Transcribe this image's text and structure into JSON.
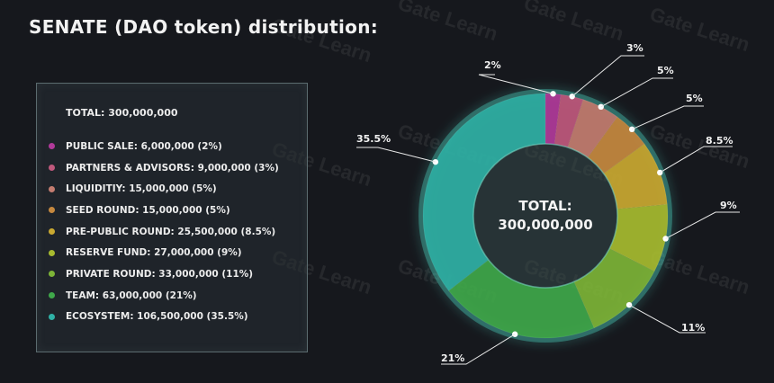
{
  "title": "SENATE (DAO token) distribution:",
  "watermark": "Gate Learn",
  "chart_data": {
    "type": "pie",
    "donut": true,
    "total_label": "TOTAL:",
    "total_value": "300,000,000",
    "legend_total": "TOTAL: 300,000,000",
    "slices": [
      {
        "name": "PUBLIC SALE",
        "value": 6000000,
        "percent": 2,
        "percent_label": "2%",
        "legend": "PUBLIC SALE: 6,000,000 (2%)",
        "color": "#b13a9a"
      },
      {
        "name": "PARTNERS & ADVISORS",
        "value": 9000000,
        "percent": 3,
        "percent_label": "3%",
        "legend": "PARTNERS & ADVISORS: 9,000,000 (3%)",
        "color": "#c0597d"
      },
      {
        "name": "LIQUIDITIY",
        "value": 15000000,
        "percent": 5,
        "percent_label": "5%",
        "legend": "LIQUIDITIY: 15,000,000 (5%)",
        "color": "#c47d70"
      },
      {
        "name": "SEED ROUND",
        "value": 15000000,
        "percent": 5,
        "percent_label": "5%",
        "legend": "SEED ROUND: 15,000,000 (5%)",
        "color": "#c6893f"
      },
      {
        "name": "PRE-PUBLIC ROUND",
        "value": 25500000,
        "percent": 8.5,
        "percent_label": "8.5%",
        "legend": "PRE-PUBLIC ROUND: 25,500,000 (8.5%)",
        "color": "#c9a931"
      },
      {
        "name": "RESERVE FUND",
        "value": 27000000,
        "percent": 9,
        "percent_label": "9%",
        "legend": "RESERVE FUND:  27,000,000 (9%)",
        "color": "#a7bb2f"
      },
      {
        "name": "PRIVATE ROUND",
        "value": 33000000,
        "percent": 11,
        "percent_label": "11%",
        "legend": "PRIVATE ROUND: 33,000,000 (11%)",
        "color": "#7db437"
      },
      {
        "name": "TEAM",
        "value": 63000000,
        "percent": 21,
        "percent_label": "21%",
        "legend": "TEAM: 63,000,000 (21%)",
        "color": "#3fa84a"
      },
      {
        "name": "ECOSYSTEM",
        "value": 106500000,
        "percent": 35.5,
        "percent_label": "35.5%",
        "legend": "ECOSYSTEM: 106,500,000 (35.5%)",
        "color": "#2fb2a6"
      }
    ]
  }
}
